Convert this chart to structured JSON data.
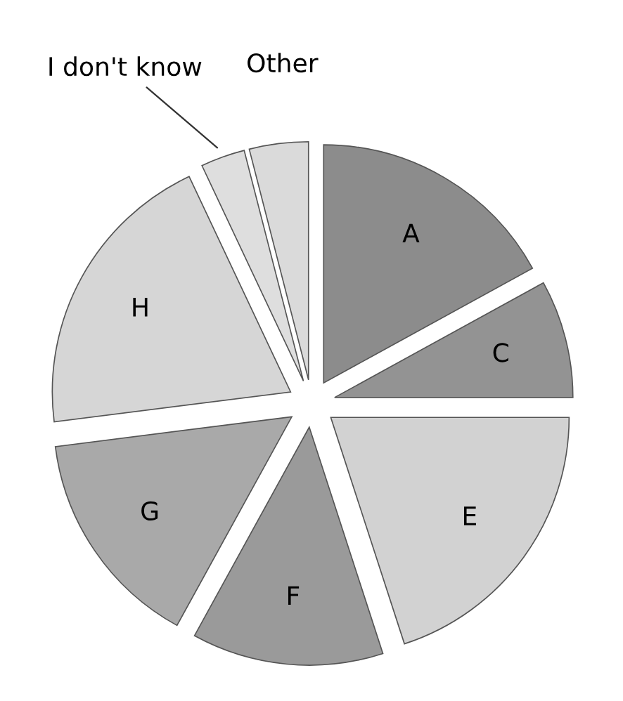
{
  "chart_data": {
    "type": "pie",
    "categories": [
      "A",
      "C",
      "E",
      "F",
      "G",
      "H",
      "I don't know",
      "Other"
    ],
    "values": [
      17,
      8,
      20,
      13,
      15,
      20,
      3,
      4
    ],
    "colors": [
      "#8c8c8c",
      "#939393",
      "#d2d2d2",
      "#9a9a9a",
      "#a9a9a9",
      "#d6d6d6",
      "#dedede",
      "#dadada"
    ]
  }
}
